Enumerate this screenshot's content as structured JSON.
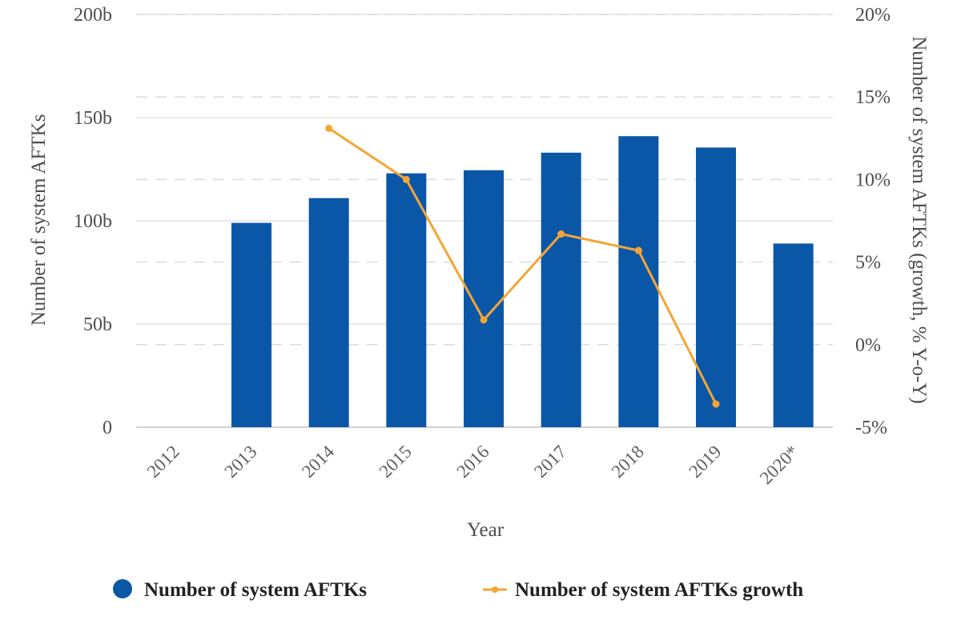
{
  "chart_data": {
    "type": "bar",
    "categories": [
      "2012",
      "2013",
      "2014",
      "2015",
      "2016",
      "2017",
      "2018",
      "2019",
      "2020*"
    ],
    "series": [
      {
        "name": "Number of system AFTKs",
        "type": "bar",
        "axis": "left",
        "color": "#0b57a7",
        "values": [
          null,
          99,
          111,
          123,
          124.5,
          133,
          141,
          135.5,
          89
        ]
      },
      {
        "name": "Number of system AFTKs growth",
        "type": "line",
        "axis": "right",
        "color": "#f5a534",
        "values": [
          null,
          null,
          13.1,
          10,
          1.5,
          6.7,
          5.7,
          -3.6,
          null
        ]
      }
    ],
    "left_axis": {
      "label": "Number of system AFTKs",
      "ylim": [
        0,
        200
      ],
      "ticks": [
        0,
        50,
        100,
        150,
        200
      ],
      "tick_labels": [
        "0",
        "50b",
        "100b",
        "150b",
        "200b"
      ]
    },
    "right_axis": {
      "label": "Number of system AFTKs (growth, % Y-o-Y)",
      "ylim": [
        -5,
        20
      ],
      "ticks": [
        -5,
        0,
        5,
        10,
        15,
        20
      ],
      "tick_labels": [
        "-5%",
        "0%",
        "5%",
        "10%",
        "15%",
        "20%"
      ]
    },
    "xlabel": "Year",
    "legend": {
      "placement": "bottom",
      "entries": [
        "Number of system AFTKs",
        "Number of system AFTKs growth"
      ]
    },
    "grid": true
  }
}
